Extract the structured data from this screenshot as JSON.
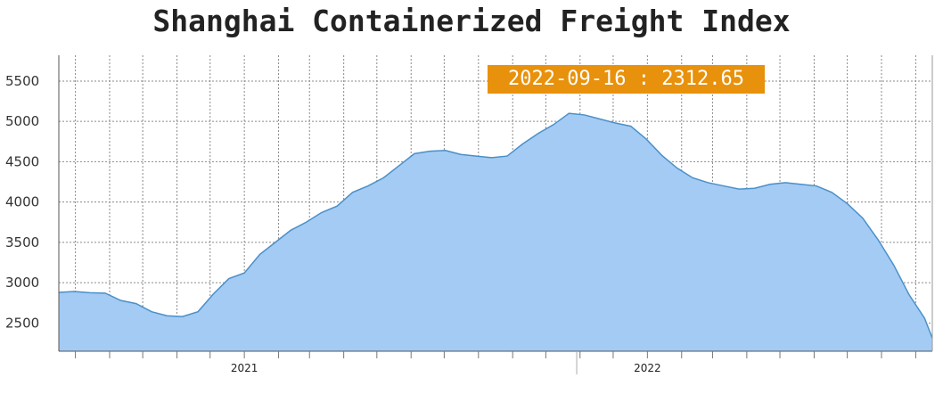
{
  "chart_data": {
    "type": "area",
    "title": "Shanghai Containerized Freight Index",
    "xlabel": "",
    "ylabel": "",
    "xlim": [
      "2020-07-17",
      "2022-09-16"
    ],
    "ylim": [
      2150,
      5820
    ],
    "y_ticks": [
      2500,
      3000,
      3500,
      4000,
      4500,
      5000,
      5500
    ],
    "x_tick_labels": [
      {
        "label": "2021",
        "date": "2021-01-01"
      },
      {
        "label": "2022",
        "date": "2022-01-01"
      }
    ],
    "grid": true,
    "fill_color": "#a4cbf3",
    "line_color": "#4a90c9",
    "highlight": {
      "date": "2022-09-16",
      "value": 2312.65,
      "label": "2022-09-16 : 2312.65"
    },
    "series": [
      {
        "x": [
          "2020-07-17",
          "2020-07-31",
          "2020-08-14",
          "2020-08-28",
          "2020-09-11",
          "2020-09-25",
          "2020-10-09",
          "2020-10-23",
          "2020-11-06",
          "2020-11-20",
          "2020-12-04",
          "2020-12-18",
          "2021-01-01",
          "2021-01-15",
          "2021-01-29",
          "2021-02-12",
          "2021-02-26",
          "2021-03-12",
          "2021-03-26",
          "2021-04-09",
          "2021-04-23",
          "2021-05-07",
          "2021-05-21",
          "2021-06-04",
          "2021-06-18",
          "2021-07-02",
          "2021-07-16",
          "2021-07-30",
          "2021-08-13",
          "2021-08-27",
          "2021-09-10",
          "2021-09-24",
          "2021-10-08",
          "2021-10-22",
          "2021-11-05",
          "2021-11-19",
          "2021-12-03",
          "2021-12-17",
          "2021-12-31",
          "2022-01-14",
          "2022-01-28",
          "2022-02-11",
          "2022-02-25",
          "2022-03-11",
          "2022-03-25",
          "2022-04-08",
          "2022-04-22",
          "2022-05-06",
          "2022-05-20",
          "2022-06-03",
          "2022-06-17",
          "2022-07-01",
          "2022-07-15",
          "2022-07-29",
          "2022-08-12",
          "2022-08-26",
          "2022-09-09",
          "2022-09-16"
        ],
        "values": [
          2880,
          2890,
          2875,
          2870,
          2780,
          2740,
          2640,
          2590,
          2580,
          2640,
          2860,
          3050,
          3120,
          3350,
          3500,
          3650,
          3750,
          3870,
          3950,
          4120,
          4200,
          4300,
          4450,
          4600,
          4630,
          4640,
          4590,
          4570,
          4550,
          4570,
          4720,
          4850,
          4960,
          5100,
          5080,
          5030,
          4980,
          4940,
          4780,
          4580,
          4420,
          4300,
          4240,
          4200,
          4160,
          4170,
          4220,
          4240,
          4220,
          4200,
          4120,
          3980,
          3800,
          3530,
          3220,
          2850,
          2560,
          2312.65
        ]
      }
    ]
  }
}
